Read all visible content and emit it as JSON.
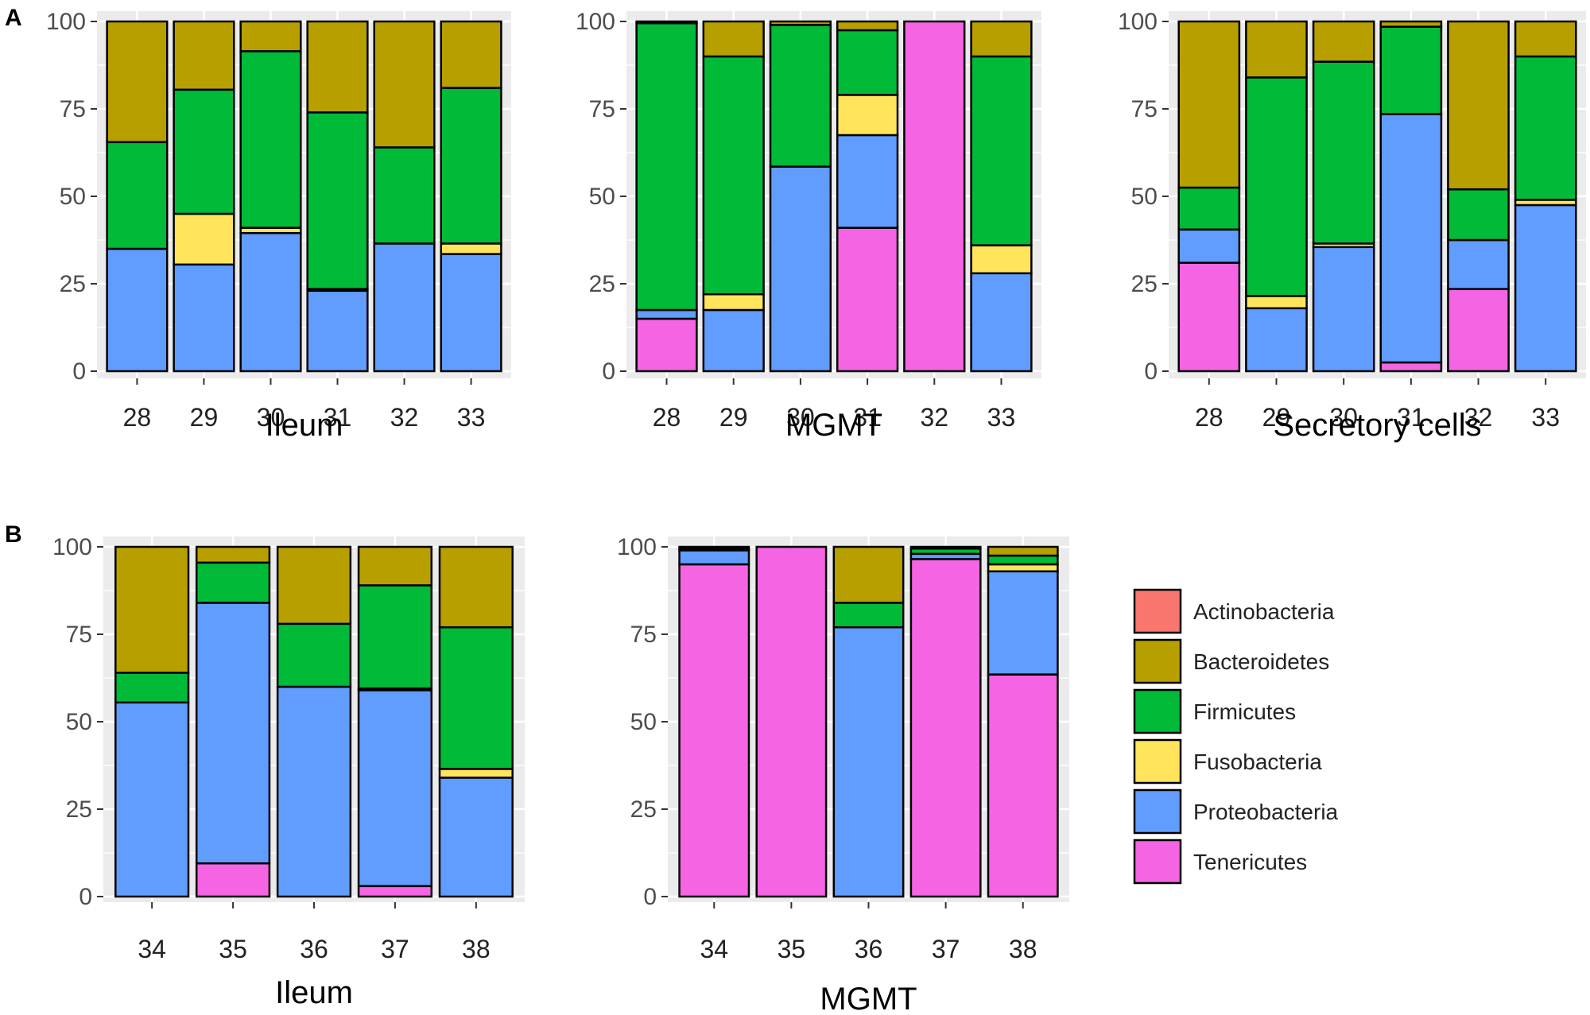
{
  "panel_letters": {
    "a": "A",
    "b": "B"
  },
  "colors": {
    "Actinobacteria": "#F8766D",
    "Bacteroidetes": "#B79F00",
    "Firmicutes": "#00BA38",
    "Fusobacteria": "#FFE45C",
    "Proteobacteria": "#619CFF",
    "Tenericutes": "#F564E3",
    "panel_bg": "#EBEBEB",
    "grid": "#FFFFFF"
  },
  "legend": {
    "items": [
      "Actinobacteria",
      "Bacteroidetes",
      "Firmicutes",
      "Fusobacteria",
      "Proteobacteria",
      "Tenericutes"
    ]
  },
  "chart_data": [
    {
      "type": "bar",
      "stacked": true,
      "panel": "A",
      "xlabel": "Ileum",
      "ylabel": "",
      "ylim": [
        0,
        100
      ],
      "yticks": [
        "0",
        "25",
        "50",
        "75",
        "100"
      ],
      "categories": [
        "28",
        "29",
        "30",
        "31",
        "32",
        "33"
      ],
      "series": [
        {
          "name": "Tenericutes",
          "values": [
            0,
            0,
            0,
            0,
            0,
            0
          ]
        },
        {
          "name": "Proteobacteria",
          "values": [
            35,
            30.5,
            39.5,
            23,
            36.5,
            33.5
          ]
        },
        {
          "name": "Fusobacteria",
          "values": [
            0,
            14.5,
            1.5,
            0.5,
            0,
            3
          ]
        },
        {
          "name": "Firmicutes",
          "values": [
            30.5,
            35.5,
            50.5,
            50.5,
            27.5,
            44.5
          ]
        },
        {
          "name": "Bacteroidetes",
          "values": [
            34.5,
            19.5,
            8.5,
            26,
            36,
            19
          ]
        },
        {
          "name": "Actinobacteria",
          "values": [
            0,
            0,
            0,
            0,
            0,
            0
          ]
        }
      ]
    },
    {
      "type": "bar",
      "stacked": true,
      "panel": "A",
      "xlabel": "MGMT",
      "ylabel": "",
      "ylim": [
        0,
        100
      ],
      "yticks": [
        "0",
        "25",
        "50",
        "75",
        "100"
      ],
      "categories": [
        "28",
        "29",
        "30",
        "31",
        "32",
        "33"
      ],
      "series": [
        {
          "name": "Tenericutes",
          "values": [
            15,
            0,
            0,
            41,
            100,
            0
          ]
        },
        {
          "name": "Proteobacteria",
          "values": [
            2.5,
            17.5,
            58.5,
            26.5,
            0,
            28
          ]
        },
        {
          "name": "Fusobacteria",
          "values": [
            0,
            4.5,
            0,
            11.5,
            0,
            8
          ]
        },
        {
          "name": "Firmicutes",
          "values": [
            82,
            68,
            40.5,
            18.5,
            0,
            54
          ]
        },
        {
          "name": "Bacteroidetes",
          "values": [
            0.5,
            10,
            1,
            2.5,
            0,
            10
          ]
        },
        {
          "name": "Actinobacteria",
          "values": [
            0,
            0,
            0,
            0,
            0,
            0
          ]
        }
      ]
    },
    {
      "type": "bar",
      "stacked": true,
      "panel": "A",
      "xlabel": "Secretory cells",
      "ylabel": "",
      "ylim": [
        0,
        100
      ],
      "yticks": [
        "0",
        "25",
        "50",
        "75",
        "100"
      ],
      "categories": [
        "28",
        "29",
        "30",
        "31",
        "32",
        "33"
      ],
      "series": [
        {
          "name": "Tenericutes",
          "values": [
            31,
            0,
            0,
            2.5,
            23.5,
            0
          ]
        },
        {
          "name": "Proteobacteria",
          "values": [
            9.5,
            18,
            35.5,
            71,
            14,
            47.5
          ]
        },
        {
          "name": "Fusobacteria",
          "values": [
            0,
            3.5,
            1,
            0,
            0,
            1.5
          ]
        },
        {
          "name": "Firmicutes",
          "values": [
            12,
            62.5,
            52,
            25,
            14.5,
            41
          ]
        },
        {
          "name": "Bacteroidetes",
          "values": [
            47.5,
            16,
            11.5,
            1.5,
            48,
            10
          ]
        },
        {
          "name": "Actinobacteria",
          "values": [
            0,
            0,
            0,
            0,
            0,
            0
          ]
        }
      ]
    },
    {
      "type": "bar",
      "stacked": true,
      "panel": "B",
      "xlabel": "Ileum",
      "ylabel": "",
      "ylim": [
        0,
        100
      ],
      "yticks": [
        "0",
        "25",
        "50",
        "75",
        "100"
      ],
      "categories": [
        "34",
        "35",
        "36",
        "37",
        "38"
      ],
      "series": [
        {
          "name": "Tenericutes",
          "values": [
            0,
            9.5,
            0,
            3,
            0
          ]
        },
        {
          "name": "Proteobacteria",
          "values": [
            55.5,
            74.5,
            60,
            56,
            34
          ]
        },
        {
          "name": "Fusobacteria",
          "values": [
            0,
            0,
            0,
            0.5,
            2.5
          ]
        },
        {
          "name": "Firmicutes",
          "values": [
            8.5,
            11.5,
            18,
            29.5,
            40.5
          ]
        },
        {
          "name": "Bacteroidetes",
          "values": [
            36,
            4.5,
            22,
            11,
            23
          ]
        },
        {
          "name": "Actinobacteria",
          "values": [
            0,
            0,
            0,
            0,
            0
          ]
        }
      ]
    },
    {
      "type": "bar",
      "stacked": true,
      "panel": "B",
      "xlabel": "MGMT",
      "ylabel": "",
      "ylim": [
        0,
        100
      ],
      "yticks": [
        "0",
        "25",
        "50",
        "75",
        "100"
      ],
      "categories": [
        "34",
        "35",
        "36",
        "37",
        "38"
      ],
      "series": [
        {
          "name": "Tenericutes",
          "values": [
            95,
            100,
            0,
            96.5,
            63.5
          ]
        },
        {
          "name": "Proteobacteria",
          "values": [
            4,
            0,
            77,
            1.5,
            29.5
          ]
        },
        {
          "name": "Fusobacteria",
          "values": [
            0,
            0,
            0,
            0,
            2
          ]
        },
        {
          "name": "Firmicutes",
          "values": [
            0.5,
            0,
            7,
            1.5,
            2.5
          ]
        },
        {
          "name": "Bacteroidetes",
          "values": [
            0.5,
            0,
            16,
            0.5,
            2.5
          ]
        },
        {
          "name": "Actinobacteria",
          "values": [
            0,
            0,
            0,
            0,
            0
          ]
        }
      ]
    }
  ]
}
